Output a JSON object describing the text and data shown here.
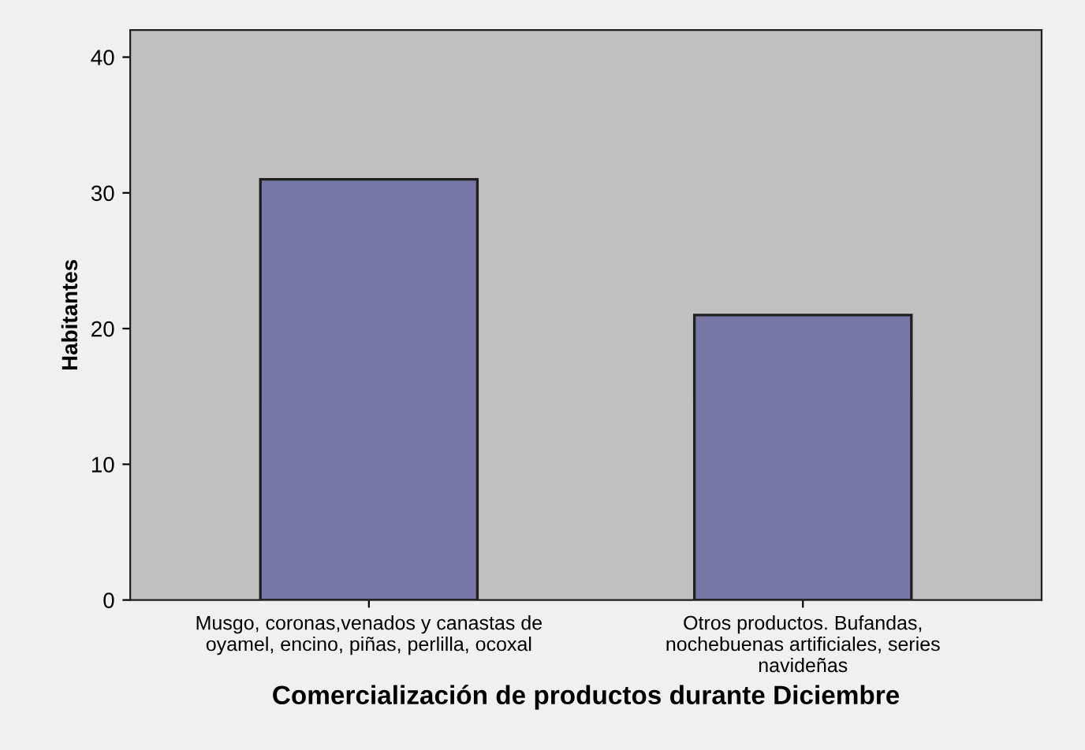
{
  "chart_data": {
    "type": "bar",
    "xlabel": "Comercialización de productos durante Diciembre",
    "ylabel": "Habitantes",
    "categories": [
      "Musgo, coronas,venados y canastas de oyamel, encino, piñas, perlilla, ocoxal",
      "Otros productos. Bufandas, nochebuenas artificiales, series navideñas"
    ],
    "values": [
      31,
      21
    ],
    "color": "#7878a8",
    "ylim": [
      0,
      42
    ],
    "yticks": [
      0,
      10,
      20,
      30,
      40
    ],
    "grid": false
  }
}
